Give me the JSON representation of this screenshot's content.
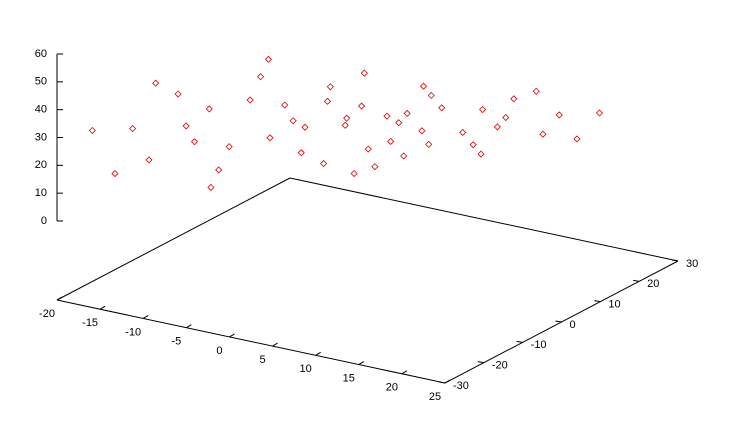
{
  "chart_data": {
    "type": "scatter3d",
    "color": "#e00000",
    "x": [
      -4.5,
      -5.7,
      -8.5,
      -11.3,
      -12.5,
      -11.3,
      -8.5,
      -5.7,
      -0.5,
      -2.8,
      -8.5,
      -14.2,
      -16.5,
      -14.2,
      -8.5,
      -2.8,
      2.5,
      -0.7,
      -8.5,
      -16.3,
      -19.5,
      -16.3,
      -8.5,
      -0.7,
      4.5,
      5.7,
      8.5,
      11.3,
      12.5,
      11.3,
      8.5,
      5.7,
      0.5,
      2.8,
      8.5,
      14.2,
      16.5,
      14.2,
      8.5,
      2.8,
      -2.5,
      0.7,
      8.5,
      16.3,
      19.5,
      16.3,
      8.5,
      0.7,
      0.5,
      2,
      4,
      6
    ],
    "y": [
      -3.6,
      -3.1,
      -5.8,
      -10.1,
      -13.4,
      -13.9,
      -11.2,
      -6.9,
      1.3,
      2.2,
      -3.1,
      -11.7,
      -18.3,
      -19.2,
      -13.9,
      -5.3,
      5.0,
      6.3,
      -1.1,
      -12.8,
      -22.0,
      -23.3,
      -15.9,
      -4.2,
      3.6,
      3.1,
      5.8,
      10.1,
      13.4,
      13.9,
      11.2,
      6.9,
      -1.3,
      -2.2,
      3.1,
      11.7,
      18.3,
      19.2,
      13.9,
      5.3,
      -5.0,
      -6.3,
      1.1,
      12.8,
      22.0,
      23.3,
      15.9,
      4.2,
      1,
      3,
      6,
      8
    ],
    "z": [
      27,
      31.5,
      33.4,
      31.5,
      27,
      22.5,
      20.6,
      22.5,
      27,
      36.1,
      39.8,
      36.1,
      27,
      17.9,
      14.2,
      17.9,
      27,
      39.4,
      44.6,
      39.4,
      27,
      14.6,
      9.4,
      14.6,
      27,
      31.5,
      33.4,
      31.5,
      27,
      22.5,
      20.6,
      22.5,
      27,
      36.1,
      39.8,
      36.1,
      27,
      17.9,
      14.2,
      17.9,
      27,
      39.4,
      44.6,
      39.4,
      27,
      14.6,
      9.4,
      14.6,
      8,
      10,
      13,
      17
    ],
    "xlim": [
      -20,
      25
    ],
    "ylim": [
      -30,
      30
    ],
    "zlim": [
      0,
      60
    ],
    "xticks": [
      -20,
      -15,
      -10,
      -5,
      0,
      5,
      10,
      15,
      20,
      25
    ],
    "yticks": [
      -30,
      -20,
      -10,
      0,
      10,
      20,
      30
    ],
    "zticks": [
      0,
      10,
      20,
      30,
      40,
      50,
      60
    ]
  }
}
